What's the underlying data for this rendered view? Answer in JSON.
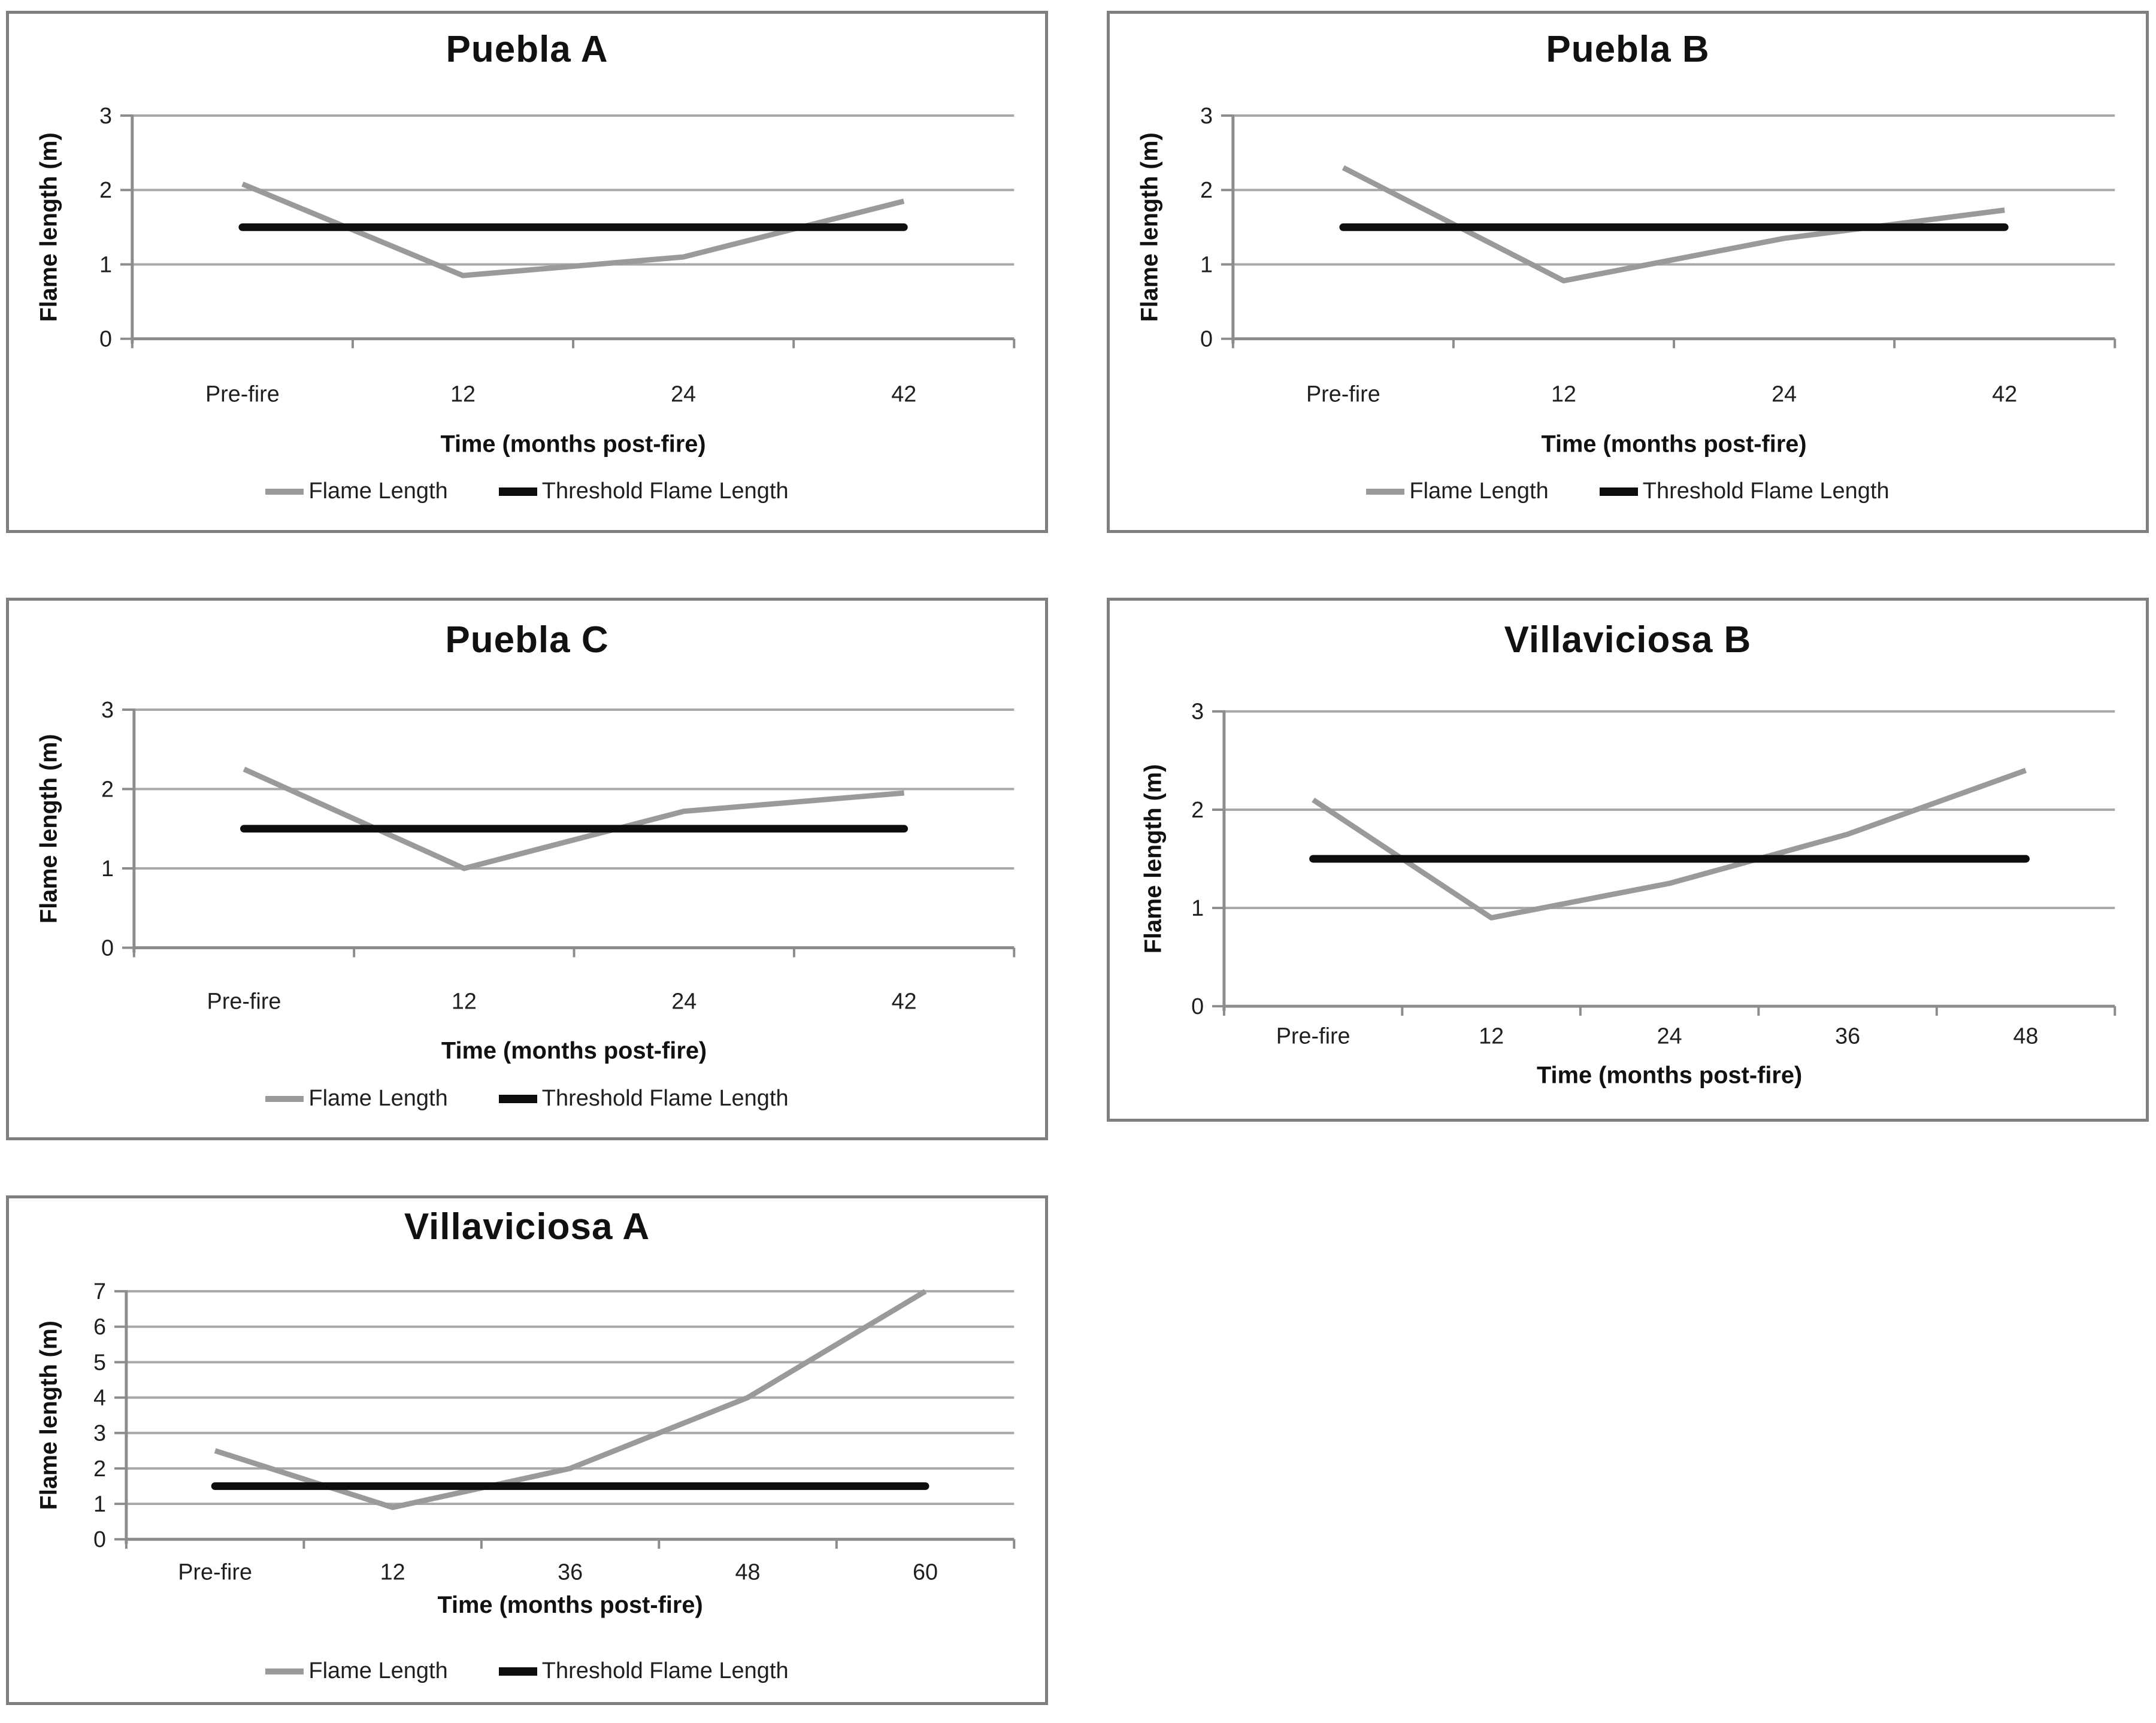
{
  "page": {
    "background": "#ffffff"
  },
  "colors": {
    "flame_line": "#9a9a9a",
    "threshold_line": "#0d0d0d",
    "gridline": "#a8a8a8",
    "axis_line": "#8c8c8c",
    "tick_text": "#1f1f1f",
    "title_text": "#111111",
    "panel_border": "#7f7f7f"
  },
  "chart_data": [
    {
      "type": "line",
      "title": "Puebla A",
      "xlabel": "Time (months post-fire)",
      "ylabel": "Flame length (m)",
      "categories": [
        "Pre-fire",
        "12",
        "24",
        "42"
      ],
      "ylim": [
        0,
        3
      ],
      "yticks": [
        0,
        1,
        2,
        3
      ],
      "grid": true,
      "legend": true,
      "legend_position": "bottom",
      "series": [
        {
          "name": "Flame Length",
          "values": [
            2.08,
            0.85,
            1.1,
            1.85
          ]
        },
        {
          "name": "Threshold Flame Length",
          "values": [
            1.5,
            1.5,
            1.5,
            1.5
          ]
        }
      ]
    },
    {
      "type": "line",
      "title": "Puebla B",
      "xlabel": "Time (months post-fire)",
      "ylabel": "Flame length (m)",
      "categories": [
        "Pre-fire",
        "12",
        "24",
        "42"
      ],
      "ylim": [
        0,
        3
      ],
      "yticks": [
        0,
        1,
        2,
        3
      ],
      "grid": true,
      "legend": true,
      "legend_position": "bottom",
      "series": [
        {
          "name": "Flame Length",
          "values": [
            2.3,
            0.78,
            1.35,
            1.73
          ]
        },
        {
          "name": "Threshold Flame Length",
          "values": [
            1.5,
            1.5,
            1.5,
            1.5
          ]
        }
      ]
    },
    {
      "type": "line",
      "title": "Puebla C",
      "xlabel": "Time (months post-fire)",
      "ylabel": "Flame length (m)",
      "categories": [
        "Pre-fire",
        "12",
        "24",
        "42"
      ],
      "ylim": [
        0,
        3
      ],
      "yticks": [
        0,
        1,
        2,
        3
      ],
      "grid": true,
      "legend": true,
      "legend_position": "bottom",
      "series": [
        {
          "name": "Flame Length",
          "values": [
            2.25,
            1.0,
            1.72,
            1.95
          ]
        },
        {
          "name": "Threshold Flame Length",
          "values": [
            1.5,
            1.5,
            1.5,
            1.5
          ]
        }
      ]
    },
    {
      "type": "line",
      "title": "Villaviciosa B",
      "xlabel": "Time (months post-fire)",
      "ylabel": "Flame length (m)",
      "categories": [
        "Pre-fire",
        "12",
        "24",
        "36",
        "48"
      ],
      "ylim": [
        0,
        3
      ],
      "yticks": [
        0,
        1,
        2,
        3
      ],
      "grid": true,
      "legend": false,
      "series": [
        {
          "name": "Flame Length",
          "values": [
            2.1,
            0.9,
            1.25,
            1.75,
            2.4
          ]
        },
        {
          "name": "Threshold Flame Length",
          "values": [
            1.5,
            1.5,
            1.5,
            1.5,
            1.5
          ]
        }
      ]
    },
    {
      "type": "line",
      "title": "Villaviciosa A",
      "xlabel": "Time (months post-fire)",
      "ylabel": "Flame length (m)",
      "categories": [
        "Pre-fire",
        "12",
        "36",
        "48",
        "60"
      ],
      "ylim": [
        0,
        7
      ],
      "yticks": [
        0,
        1,
        2,
        3,
        4,
        5,
        6,
        7
      ],
      "grid": true,
      "legend": true,
      "legend_position": "bottom",
      "series": [
        {
          "name": "Flame Length",
          "values": [
            2.5,
            0.9,
            2.0,
            4.0,
            7.0
          ]
        },
        {
          "name": "Threshold Flame Length",
          "values": [
            1.5,
            1.5,
            1.5,
            1.5,
            1.5
          ]
        }
      ]
    }
  ]
}
